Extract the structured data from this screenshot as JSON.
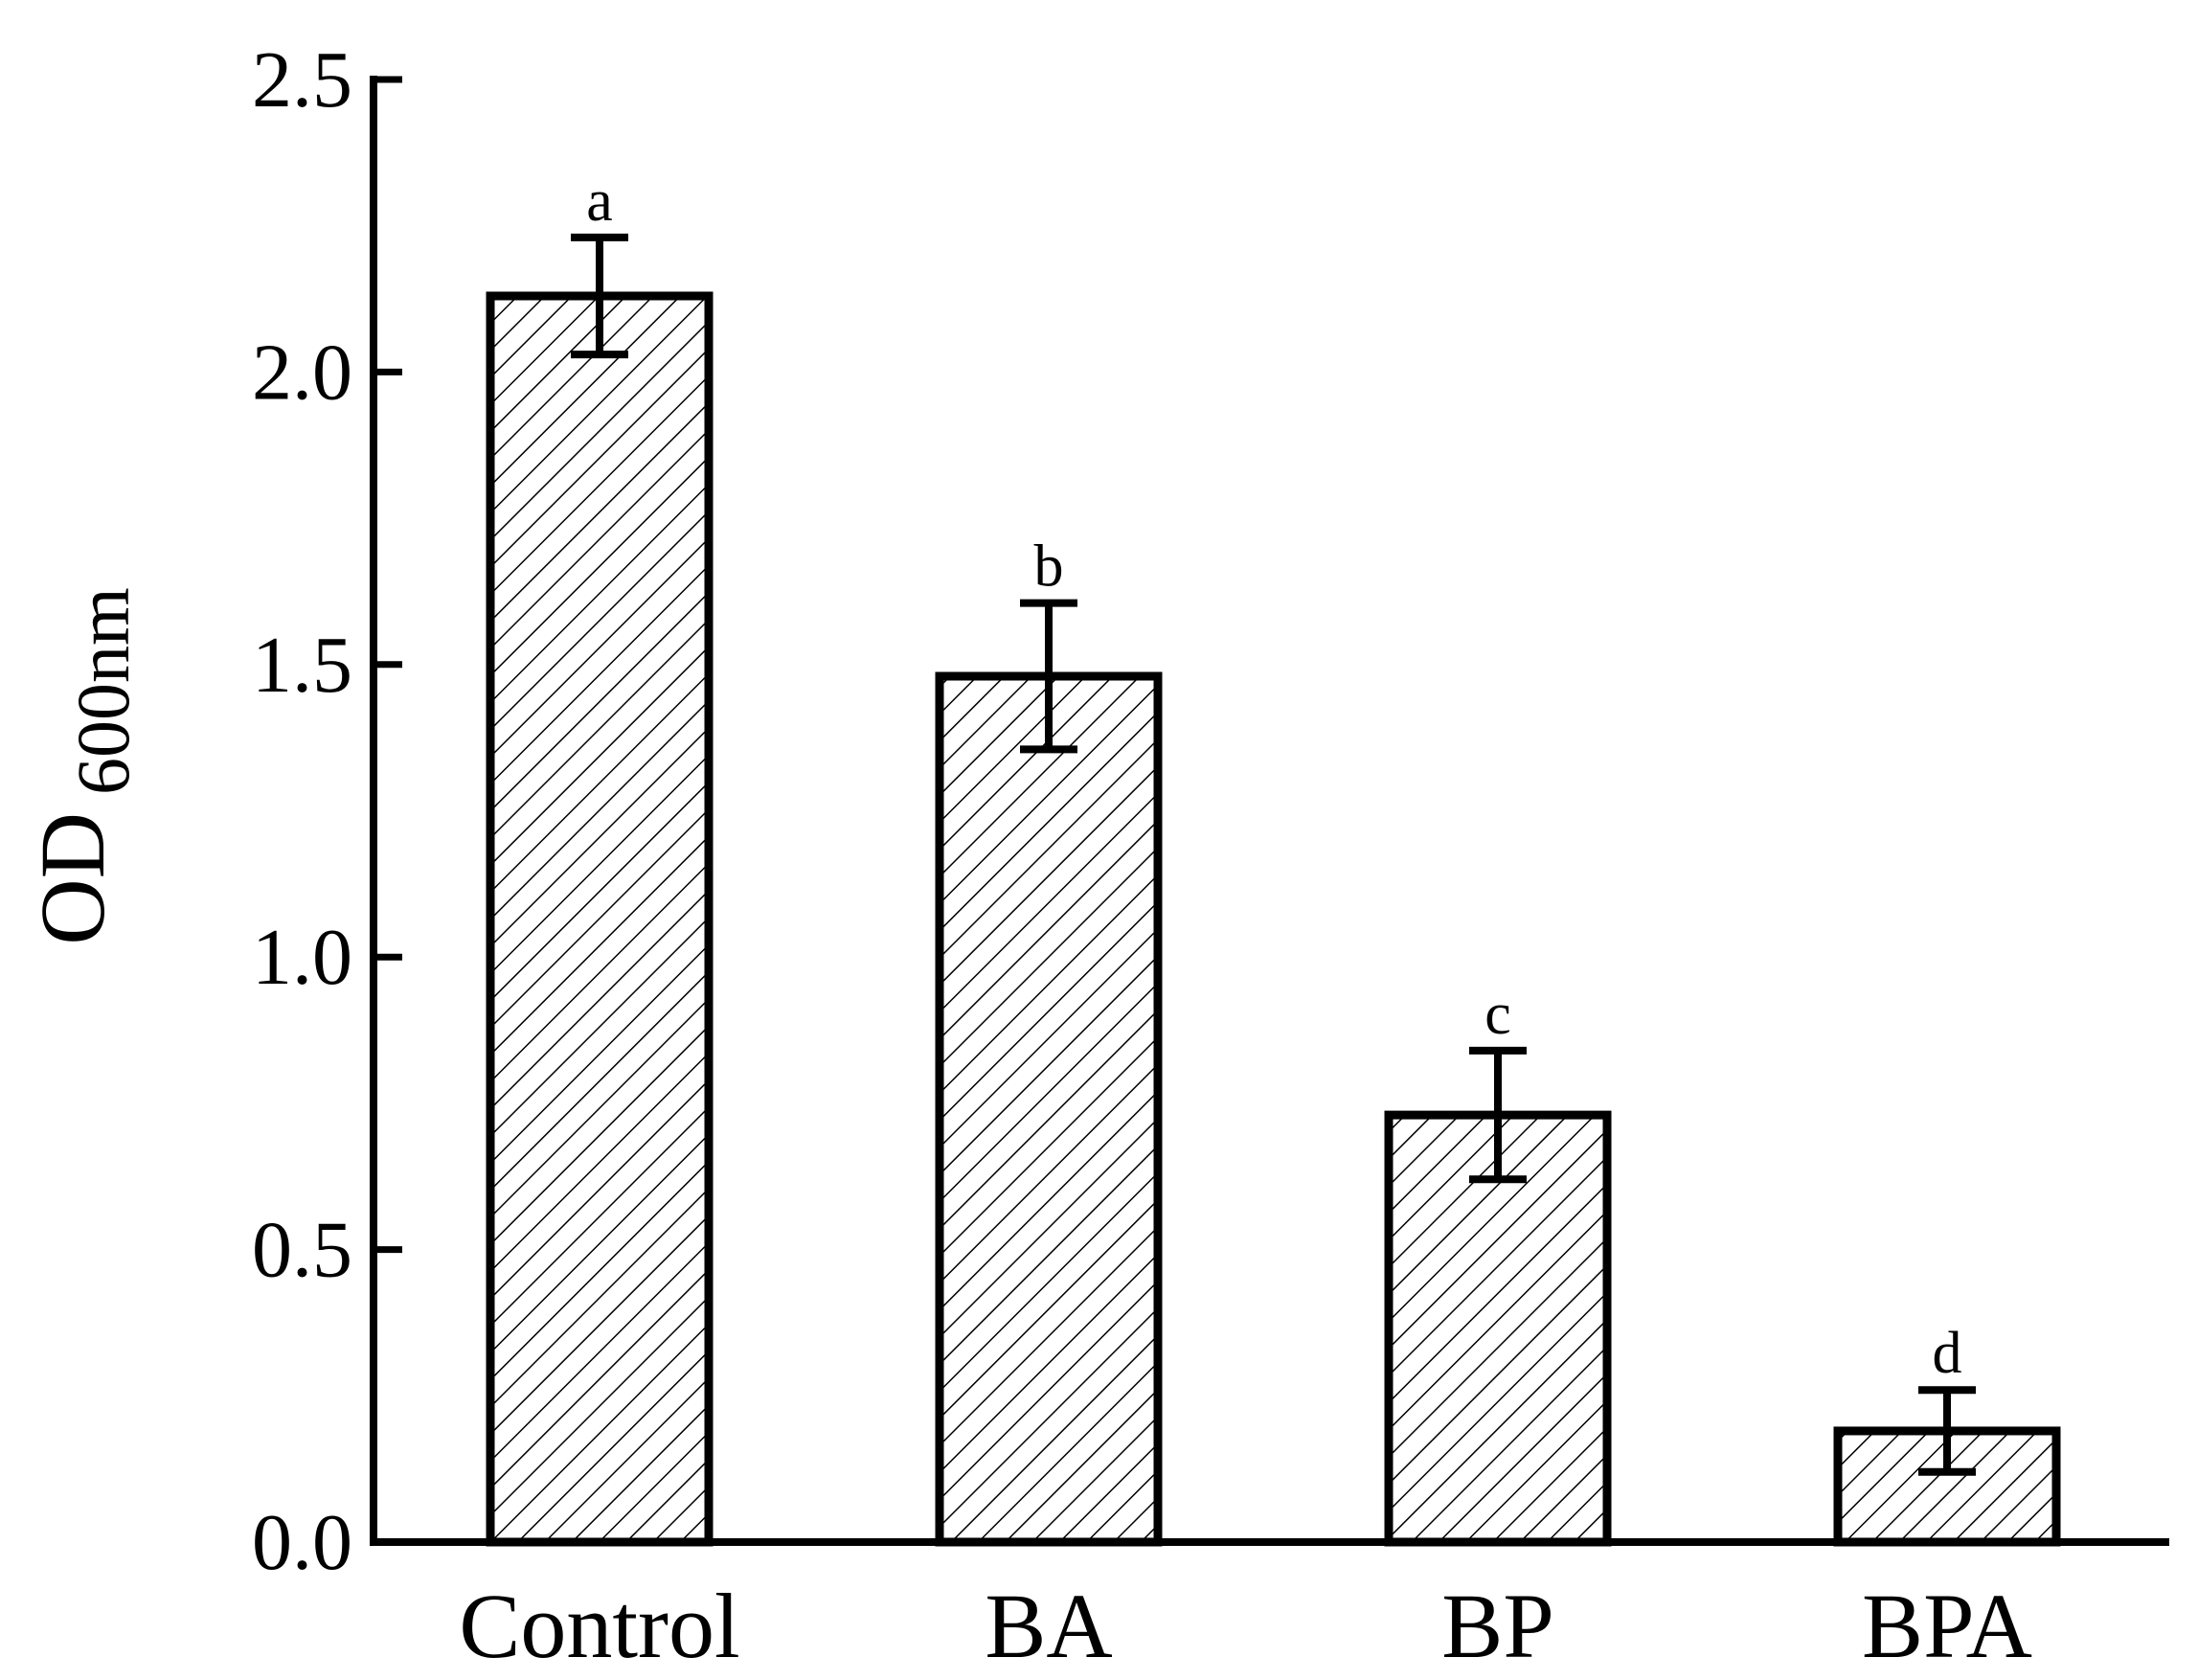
{
  "chart_data": {
    "type": "bar",
    "title": "",
    "xlabel": "",
    "ylabel": "OD",
    "ylabel_subscript": "600nm",
    "categories": [
      "Control",
      "BA",
      "BP",
      "BPA"
    ],
    "values": [
      2.13,
      1.48,
      0.73,
      0.19
    ],
    "errors": [
      0.1,
      0.125,
      0.11,
      0.07
    ],
    "significance_letters": [
      "a",
      "b",
      "c",
      "d"
    ],
    "ylim": [
      0.0,
      2.5
    ],
    "yticks": [
      "0.0",
      "0.5",
      "1.0",
      "1.5",
      "2.0",
      "2.5"
    ],
    "grid": false,
    "bar_fill": "hatched",
    "bar_color": "#ffffff",
    "line_color": "#000000"
  }
}
